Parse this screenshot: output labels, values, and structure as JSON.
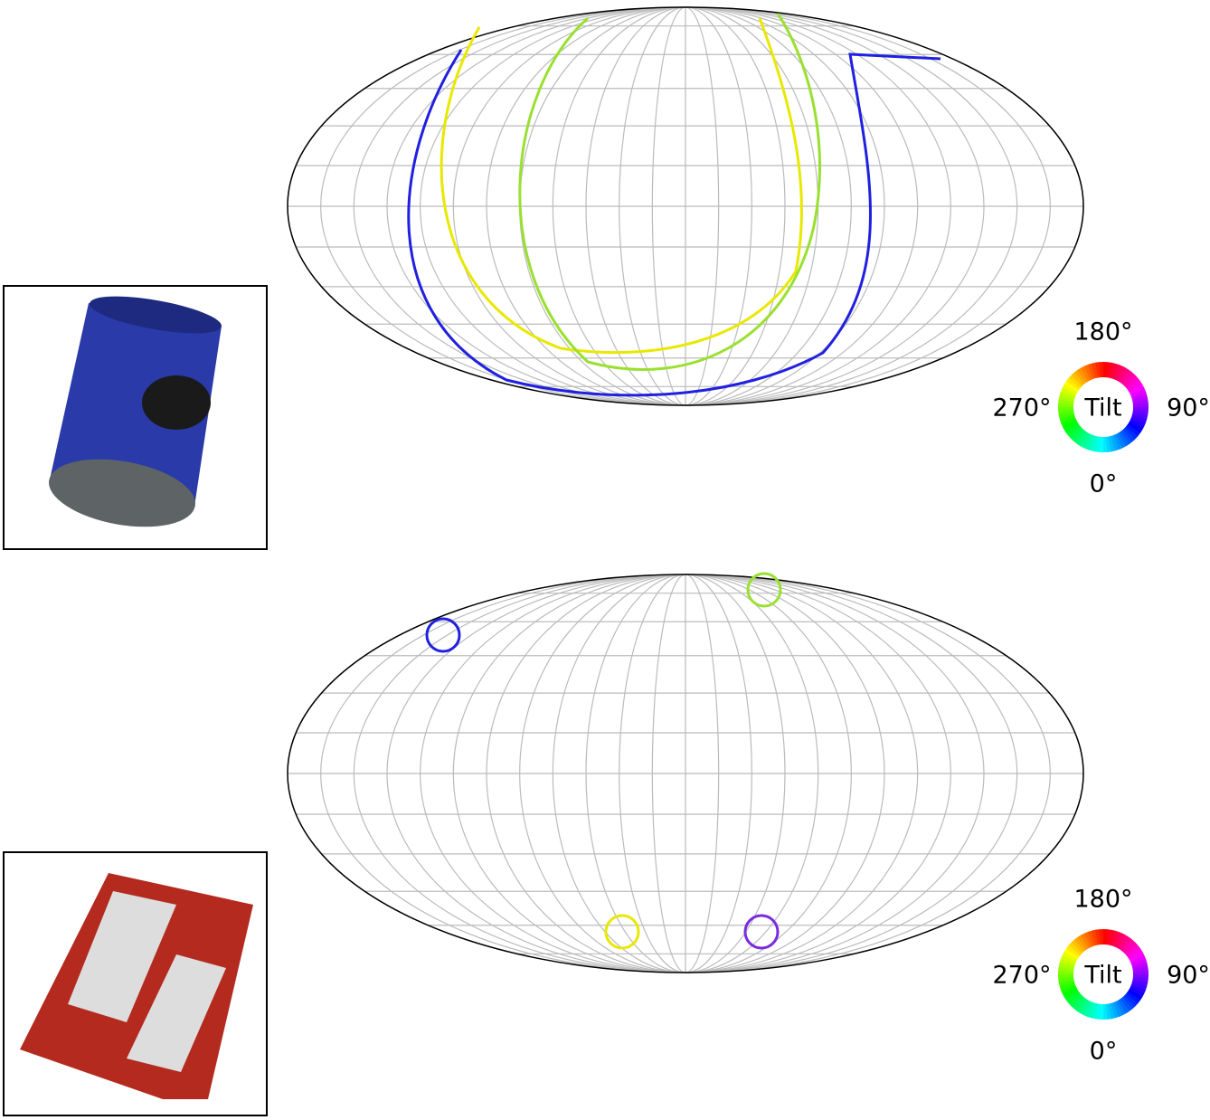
{
  "panels": [
    {
      "colorwheel": {
        "top": "180°",
        "left": "270°",
        "center": "Tilt",
        "right": "90°",
        "bottom": "0°"
      }
    },
    {
      "colorwheel": {
        "top": "180°",
        "left": "270°",
        "center": "Tilt",
        "right": "90°",
        "bottom": "0°"
      }
    }
  ]
}
